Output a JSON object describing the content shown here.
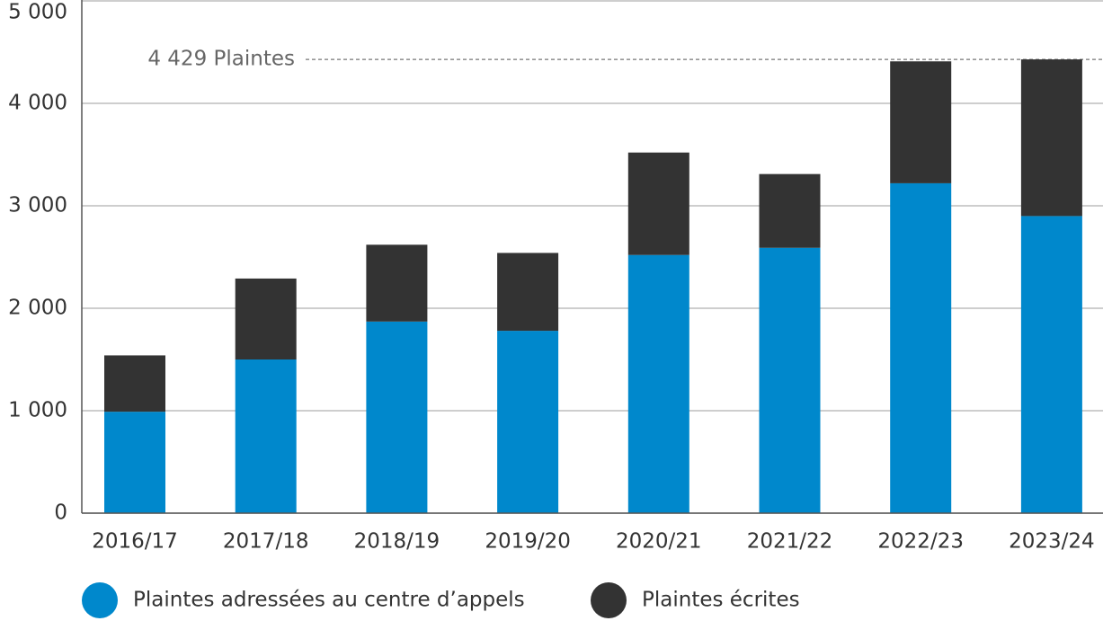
{
  "chart_data": {
    "type": "stacked_bar",
    "categories": [
      "2016/17",
      "2017/18",
      "2018/19",
      "2019/20",
      "2020/21",
      "2021/22",
      "2022/23",
      "2023/24"
    ],
    "series": [
      {
        "name": "Plaintes adressées au centre d’appels",
        "color": "#0088cc",
        "values": [
          990,
          1500,
          1870,
          1780,
          2520,
          2590,
          3220,
          2900
        ]
      },
      {
        "name": "Plaintes écrites",
        "color": "#333333",
        "values": [
          550,
          790,
          750,
          760,
          1000,
          720,
          1190,
          1529
        ]
      }
    ],
    "ylim": [
      0,
      5000
    ],
    "yticks": [
      0,
      {
        "value": 1000,
        "label": "1 000"
      },
      {
        "value": 2000,
        "label": "2 000"
      },
      {
        "value": 3000,
        "label": "3 000"
      },
      {
        "value": 4000,
        "label": "4 000"
      },
      {
        "value": 5000,
        "label": "5 000"
      }
    ],
    "grid": true,
    "annotation": {
      "text": "4 429 Plaintes",
      "value": 4429
    },
    "legend": "bottom-left"
  }
}
